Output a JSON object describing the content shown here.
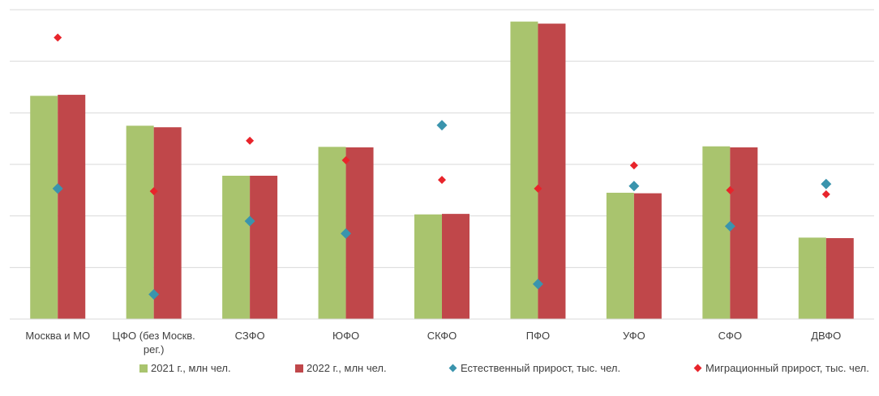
{
  "chart_data": {
    "type": "bar",
    "title": "",
    "xlabel": "",
    "ylabel": "",
    "categories": [
      "Москва и МО",
      "ЦФО (без Москв. рег.)",
      "СЗФО",
      "ЮФО",
      "СКФО",
      "ПФО",
      "УФО",
      "СФО",
      "ДВФО"
    ],
    "category_lines": [
      [
        "Москва и МО"
      ],
      [
        "ЦФО (без Москв.",
        "рег.)"
      ],
      [
        "СЗФО"
      ],
      [
        "ЮФО"
      ],
      [
        "СКФО"
      ],
      [
        "ПФО"
      ],
      [
        "УФО"
      ],
      [
        "СФО"
      ],
      [
        "ДВФО"
      ]
    ],
    "ylim": [
      0,
      6
    ],
    "grid": true,
    "legend_position": "bottom",
    "series": [
      {
        "name": "2021 г., млн чел.",
        "kind": "bar",
        "color": "#a9c46e",
        "values": [
          4.33,
          3.75,
          2.78,
          3.34,
          2.03,
          5.77,
          2.45,
          3.35,
          1.58
        ]
      },
      {
        "name": "2022 г., млн чел.",
        "kind": "bar",
        "color": "#c0474a",
        "values": [
          4.35,
          3.72,
          2.78,
          3.33,
          2.04,
          5.73,
          2.44,
          3.33,
          1.57
        ]
      },
      {
        "name": "Естественный прирост, тыс. чел.",
        "kind": "marker",
        "color": "#3a94ad",
        "values": [
          2.53,
          0.48,
          1.9,
          1.66,
          3.76,
          0.68,
          2.58,
          1.8,
          2.62
        ]
      },
      {
        "name": "Миграционный прирост, тыс. чел.",
        "kind": "marker",
        "color": "#e8242b",
        "values": [
          5.46,
          2.48,
          3.46,
          3.08,
          2.7,
          2.53,
          2.98,
          2.5,
          2.42
        ]
      }
    ]
  }
}
